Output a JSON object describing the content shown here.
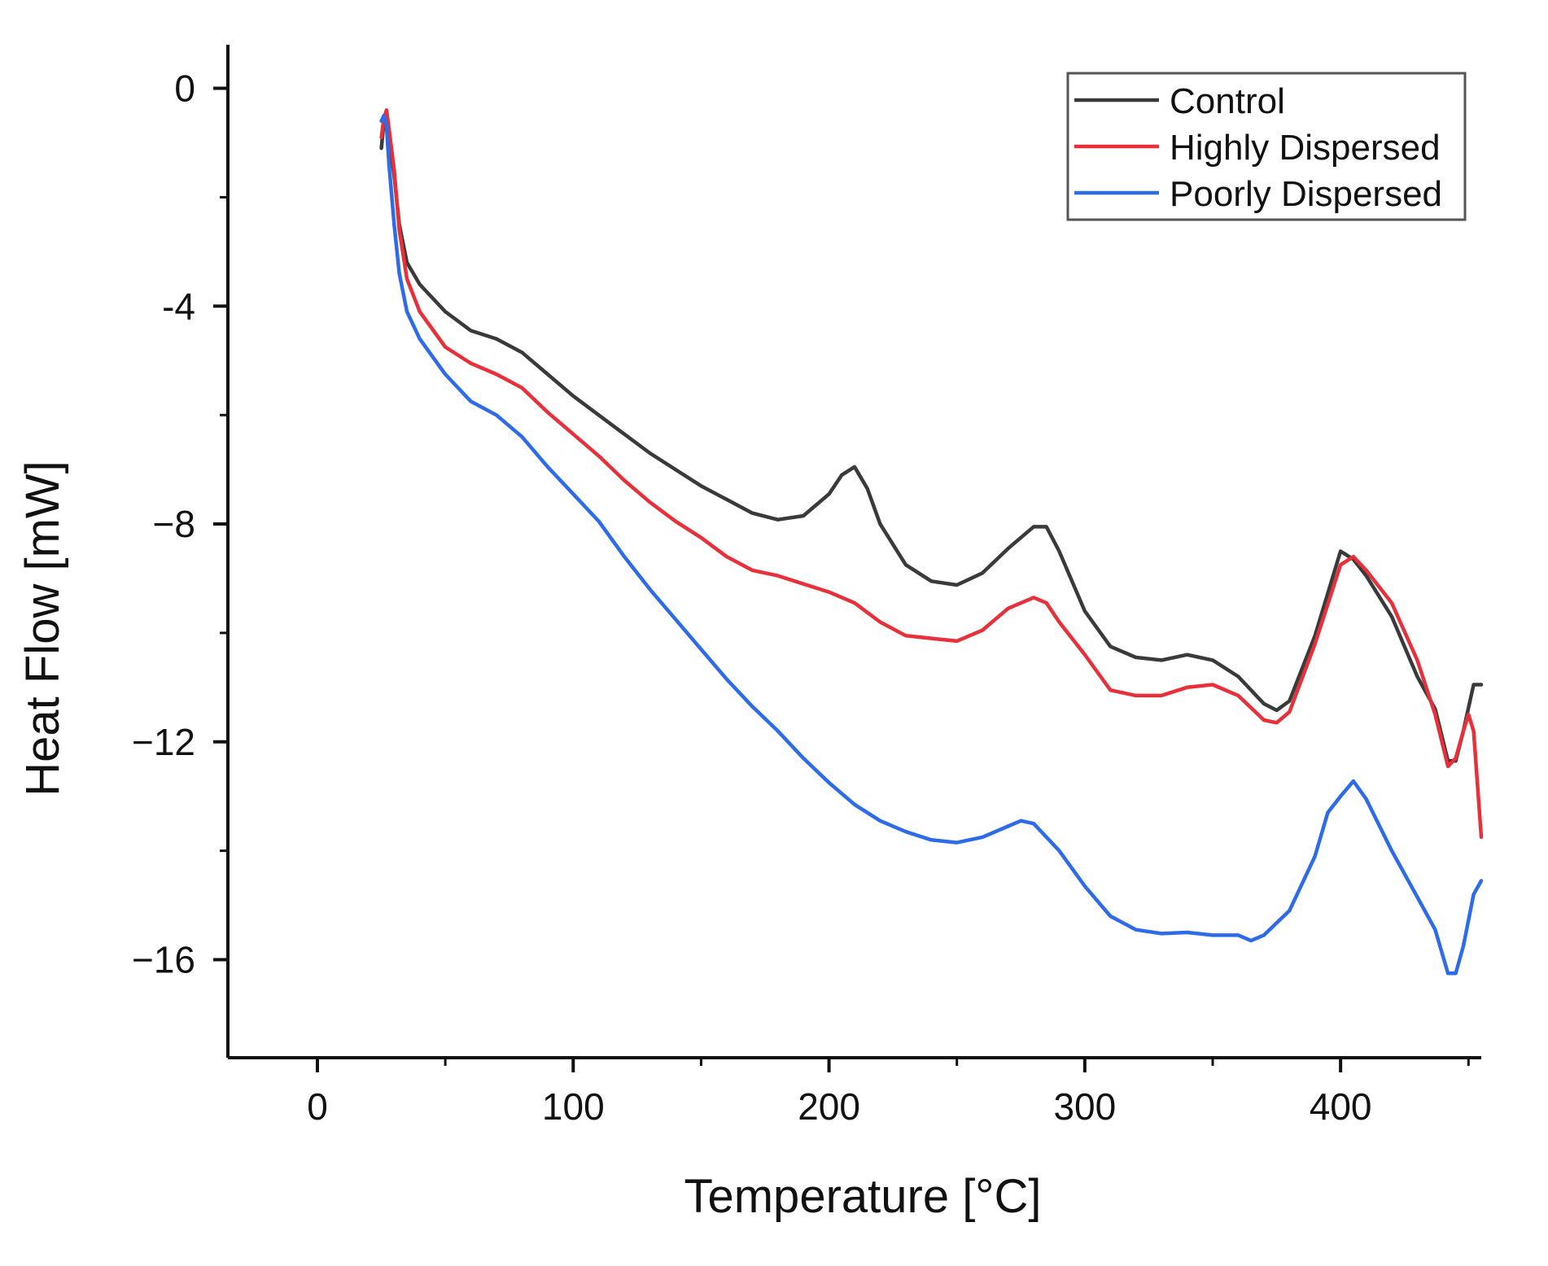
{
  "chart_data": {
    "type": "line",
    "title": "",
    "xlabel": "Temperature [°C]",
    "ylabel": "Heat Flow [mW]",
    "xlim": [
      -35,
      455
    ],
    "ylim": [
      -17.8,
      0.8
    ],
    "xticks": [
      0,
      100,
      200,
      300,
      400
    ],
    "xtick_labels": [
      "0",
      "100",
      "200",
      "300",
      "400"
    ],
    "yticks": [
      0,
      -4,
      -8,
      -12,
      -16
    ],
    "ytick_labels": [
      "0",
      "-4",
      "−8",
      "−12",
      "−16"
    ],
    "grid": false,
    "legend": "top-right",
    "series": [
      {
        "name": "Control",
        "color": "#3a3a3a",
        "points": [
          [
            25,
            -1.1
          ],
          [
            26,
            -0.6
          ],
          [
            27,
            -0.5
          ],
          [
            28,
            -0.9
          ],
          [
            30,
            -1.6
          ],
          [
            32,
            -2.5
          ],
          [
            35,
            -3.2
          ],
          [
            40,
            -3.6
          ],
          [
            50,
            -4.1
          ],
          [
            60,
            -4.45
          ],
          [
            70,
            -4.6
          ],
          [
            80,
            -4.85
          ],
          [
            90,
            -5.25
          ],
          [
            100,
            -5.65
          ],
          [
            110,
            -6.0
          ],
          [
            120,
            -6.35
          ],
          [
            130,
            -6.7
          ],
          [
            140,
            -7.0
          ],
          [
            150,
            -7.3
          ],
          [
            160,
            -7.55
          ],
          [
            170,
            -7.8
          ],
          [
            180,
            -7.92
          ],
          [
            190,
            -7.85
          ],
          [
            200,
            -7.45
          ],
          [
            205,
            -7.1
          ],
          [
            210,
            -6.95
          ],
          [
            215,
            -7.35
          ],
          [
            220,
            -8.0
          ],
          [
            230,
            -8.75
          ],
          [
            240,
            -9.05
          ],
          [
            250,
            -9.12
          ],
          [
            260,
            -8.9
          ],
          [
            270,
            -8.45
          ],
          [
            280,
            -8.05
          ],
          [
            285,
            -8.05
          ],
          [
            290,
            -8.5
          ],
          [
            300,
            -9.6
          ],
          [
            310,
            -10.25
          ],
          [
            320,
            -10.45
          ],
          [
            330,
            -10.5
          ],
          [
            340,
            -10.4
          ],
          [
            350,
            -10.5
          ],
          [
            360,
            -10.8
          ],
          [
            370,
            -11.3
          ],
          [
            375,
            -11.42
          ],
          [
            380,
            -11.25
          ],
          [
            390,
            -10.05
          ],
          [
            400,
            -8.5
          ],
          [
            405,
            -8.65
          ],
          [
            410,
            -8.95
          ],
          [
            420,
            -9.7
          ],
          [
            430,
            -10.8
          ],
          [
            437,
            -11.4
          ],
          [
            442,
            -12.35
          ],
          [
            445,
            -12.35
          ],
          [
            448,
            -11.8
          ],
          [
            452,
            -10.95
          ],
          [
            455,
            -10.95
          ]
        ]
      },
      {
        "name": "Highly Dispersed",
        "color": "#e8303a",
        "points": [
          [
            25,
            -0.9
          ],
          [
            26,
            -0.55
          ],
          [
            27,
            -0.4
          ],
          [
            28,
            -0.75
          ],
          [
            30,
            -1.5
          ],
          [
            32,
            -2.6
          ],
          [
            35,
            -3.5
          ],
          [
            40,
            -4.1
          ],
          [
            50,
            -4.75
          ],
          [
            60,
            -5.05
          ],
          [
            70,
            -5.25
          ],
          [
            80,
            -5.5
          ],
          [
            90,
            -5.95
          ],
          [
            100,
            -6.35
          ],
          [
            110,
            -6.75
          ],
          [
            120,
            -7.2
          ],
          [
            130,
            -7.6
          ],
          [
            140,
            -7.95
          ],
          [
            150,
            -8.25
          ],
          [
            160,
            -8.6
          ],
          [
            170,
            -8.85
          ],
          [
            180,
            -8.95
          ],
          [
            190,
            -9.1
          ],
          [
            200,
            -9.25
          ],
          [
            210,
            -9.45
          ],
          [
            220,
            -9.8
          ],
          [
            230,
            -10.05
          ],
          [
            240,
            -10.1
          ],
          [
            250,
            -10.15
          ],
          [
            260,
            -9.95
          ],
          [
            270,
            -9.55
          ],
          [
            280,
            -9.35
          ],
          [
            285,
            -9.45
          ],
          [
            290,
            -9.8
          ],
          [
            300,
            -10.4
          ],
          [
            310,
            -11.05
          ],
          [
            320,
            -11.15
          ],
          [
            330,
            -11.15
          ],
          [
            340,
            -11.0
          ],
          [
            350,
            -10.95
          ],
          [
            360,
            -11.15
          ],
          [
            370,
            -11.6
          ],
          [
            375,
            -11.65
          ],
          [
            380,
            -11.45
          ],
          [
            390,
            -10.2
          ],
          [
            400,
            -8.75
          ],
          [
            405,
            -8.6
          ],
          [
            410,
            -8.85
          ],
          [
            420,
            -9.45
          ],
          [
            430,
            -10.5
          ],
          [
            437,
            -11.5
          ],
          [
            442,
            -12.45
          ],
          [
            445,
            -12.3
          ],
          [
            448,
            -11.8
          ],
          [
            450,
            -11.5
          ],
          [
            452,
            -11.8
          ],
          [
            455,
            -13.75
          ]
        ]
      },
      {
        "name": "Poorly Dispersed",
        "color": "#2d6be8",
        "points": [
          [
            25,
            -0.6
          ],
          [
            26,
            -0.5
          ],
          [
            27,
            -0.7
          ],
          [
            28,
            -1.4
          ],
          [
            30,
            -2.5
          ],
          [
            32,
            -3.4
          ],
          [
            35,
            -4.1
          ],
          [
            40,
            -4.6
          ],
          [
            50,
            -5.25
          ],
          [
            60,
            -5.75
          ],
          [
            70,
            -6.0
          ],
          [
            80,
            -6.4
          ],
          [
            90,
            -6.95
          ],
          [
            100,
            -7.45
          ],
          [
            110,
            -7.95
          ],
          [
            120,
            -8.6
          ],
          [
            130,
            -9.2
          ],
          [
            140,
            -9.75
          ],
          [
            150,
            -10.3
          ],
          [
            160,
            -10.85
          ],
          [
            170,
            -11.35
          ],
          [
            180,
            -11.8
          ],
          [
            190,
            -12.3
          ],
          [
            200,
            -12.75
          ],
          [
            210,
            -13.15
          ],
          [
            220,
            -13.45
          ],
          [
            230,
            -13.65
          ],
          [
            240,
            -13.8
          ],
          [
            250,
            -13.85
          ],
          [
            260,
            -13.75
          ],
          [
            270,
            -13.55
          ],
          [
            275,
            -13.45
          ],
          [
            280,
            -13.5
          ],
          [
            290,
            -14.0
          ],
          [
            300,
            -14.65
          ],
          [
            310,
            -15.2
          ],
          [
            320,
            -15.45
          ],
          [
            330,
            -15.52
          ],
          [
            340,
            -15.5
          ],
          [
            350,
            -15.55
          ],
          [
            360,
            -15.55
          ],
          [
            365,
            -15.65
          ],
          [
            370,
            -15.55
          ],
          [
            380,
            -15.1
          ],
          [
            390,
            -14.1
          ],
          [
            395,
            -13.3
          ],
          [
            400,
            -13.0
          ],
          [
            405,
            -12.72
          ],
          [
            410,
            -13.05
          ],
          [
            420,
            -14.0
          ],
          [
            430,
            -14.85
          ],
          [
            437,
            -15.45
          ],
          [
            442,
            -16.25
          ],
          [
            445,
            -16.25
          ],
          [
            448,
            -15.75
          ],
          [
            452,
            -14.8
          ],
          [
            455,
            -14.55
          ]
        ]
      }
    ]
  }
}
